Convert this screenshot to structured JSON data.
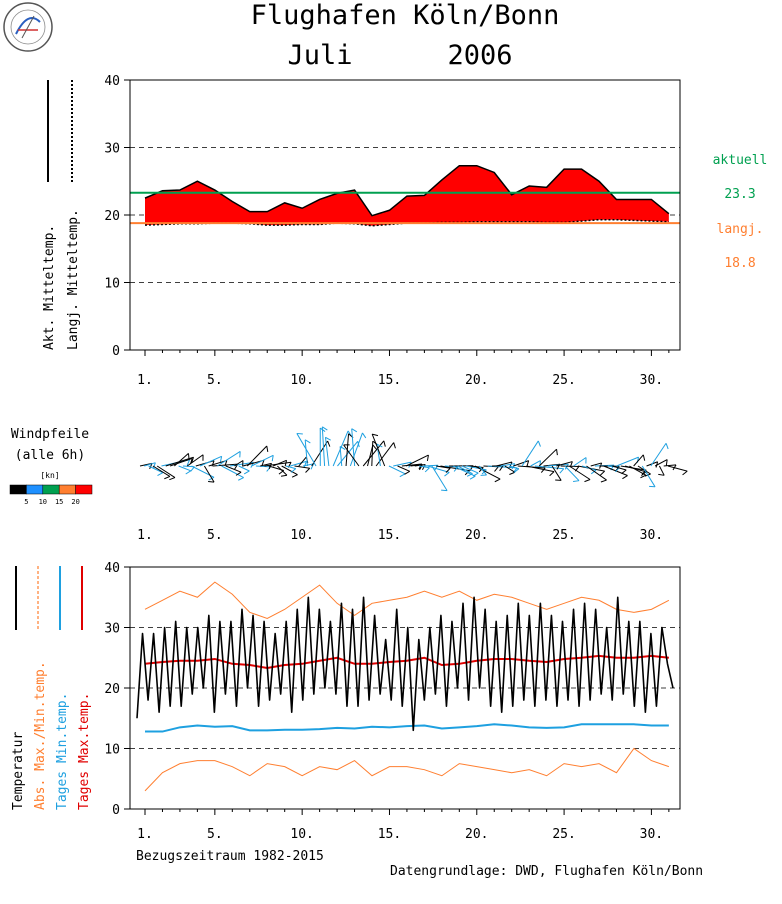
{
  "page": {
    "title_line1": "Flughafen Köln/Bonn",
    "title_month": "Juli",
    "title_year": "2006",
    "logo_text": "Klima Messstation Köln/Bonn",
    "reference_period": "Bezugszeitraum 1982-2015",
    "data_source": "Datengrundlage: DWD, Flughafen Köln/Bonn"
  },
  "panel1": {
    "legend_actual": "Akt. Mitteltemp.",
    "legend_longterm": "Langj. Mitteltemp.",
    "label_current": "aktuell",
    "value_current": "23.3",
    "label_longterm": "langj.",
    "value_longterm": "18.8",
    "colors": {
      "fill_warm": "#ff0000",
      "actual_line": "#00a050",
      "longterm_line": "#ff7f30"
    }
  },
  "panel2": {
    "title_line1": "Windpfeile",
    "title_line2": "(alle 6h)",
    "unit": "[kn]",
    "scale_labels": [
      "5",
      "10",
      "15",
      "20"
    ],
    "scale_colors": [
      "#000000",
      "#1e90ff",
      "#00a050",
      "#ff7f30",
      "#ff0000"
    ]
  },
  "panel3": {
    "legend": [
      "Temperatur",
      "Abs. Max./Min.temp.",
      "Tages Min.temp.",
      "Tages Max.temp."
    ],
    "legend_colors": [
      "#000000",
      "#ff7f30",
      "#1ea0e0",
      "#e00000"
    ]
  },
  "chart_data": [
    {
      "type": "area",
      "title": "Flughafen Köln/Bonn Juli 2006",
      "xlabel": "",
      "ylabel": "",
      "x_ticks": [
        "1.",
        "5.",
        "10.",
        "15.",
        "20.",
        "25.",
        "30."
      ],
      "ylim": [
        0,
        40
      ],
      "y_ticks": [
        0,
        10,
        20,
        30,
        40
      ],
      "grid": "horizontal dashed",
      "days": [
        1,
        2,
        3,
        4,
        5,
        6,
        7,
        8,
        9,
        10,
        11,
        12,
        13,
        14,
        15,
        16,
        17,
        18,
        19,
        20,
        21,
        22,
        23,
        24,
        25,
        26,
        27,
        28,
        29,
        30,
        31
      ],
      "series": [
        {
          "name": "Akt. Mitteltemp.",
          "values": [
            22.5,
            23.6,
            23.7,
            25.0,
            23.7,
            22.0,
            20.5,
            20.5,
            21.8,
            21.0,
            22.3,
            23.2,
            23.7,
            19.9,
            20.7,
            22.8,
            22.9,
            25.2,
            27.3,
            27.3,
            26.3,
            23.0,
            24.3,
            24.1,
            26.8,
            26.8,
            25.0,
            22.3,
            22.3,
            22.3,
            20.2
          ]
        },
        {
          "name": "Langj. Mitteltemp.",
          "values": [
            18.5,
            18.6,
            18.7,
            18.7,
            18.8,
            18.8,
            18.7,
            18.5,
            18.5,
            18.6,
            18.6,
            18.8,
            18.7,
            18.4,
            18.6,
            18.8,
            18.8,
            18.9,
            18.9,
            19.0,
            19.0,
            19.0,
            19.0,
            18.9,
            18.9,
            19.1,
            19.3,
            19.3,
            19.2,
            19.1,
            19.0
          ]
        }
      ],
      "current_mean": 23.3,
      "longterm_mean": 18.8
    },
    {
      "type": "line",
      "title": "",
      "xlabel": "Bezugszeitraum 1982-2015",
      "ylabel": "Temperatur",
      "x_ticks": [
        "1.",
        "5.",
        "10.",
        "15.",
        "20.",
        "25.",
        "30."
      ],
      "ylim": [
        0,
        40
      ],
      "y_ticks": [
        0,
        10,
        20,
        30,
        40
      ],
      "grid": "horizontal dashed",
      "days": [
        1,
        2,
        3,
        4,
        5,
        6,
        7,
        8,
        9,
        10,
        11,
        12,
        13,
        14,
        15,
        16,
        17,
        18,
        19,
        20,
        21,
        22,
        23,
        24,
        25,
        26,
        27,
        28,
        29,
        30,
        31
      ],
      "series": [
        {
          "name": "Abs. Max.temp.",
          "values": [
            33.0,
            34.5,
            36.0,
            35.0,
            37.5,
            35.5,
            32.5,
            31.5,
            33.0,
            35.0,
            37.0,
            34.0,
            32.0,
            34.0,
            34.5,
            35.0,
            36.0,
            35.0,
            36.0,
            34.5,
            35.5,
            35.0,
            34.0,
            33.0,
            34.0,
            35.0,
            34.5,
            33.0,
            32.5,
            33.0,
            34.5
          ]
        },
        {
          "name": "Abs. Min.temp.",
          "values": [
            3.0,
            6.0,
            7.5,
            8.0,
            8.0,
            7.0,
            5.5,
            7.5,
            7.0,
            5.5,
            7.0,
            6.5,
            8.0,
            5.5,
            7.0,
            7.0,
            6.5,
            5.5,
            7.5,
            7.0,
            6.5,
            6.0,
            6.5,
            5.5,
            7.5,
            7.0,
            7.5,
            6.0,
            10.0,
            8.0,
            7.0
          ]
        },
        {
          "name": "Tages Min.temp.",
          "values": [
            12.8,
            12.8,
            13.5,
            13.8,
            13.6,
            13.7,
            13.0,
            13.0,
            13.1,
            13.1,
            13.2,
            13.4,
            13.3,
            13.6,
            13.5,
            13.7,
            13.8,
            13.3,
            13.5,
            13.7,
            14.0,
            13.8,
            13.5,
            13.4,
            13.5,
            14.0,
            14.0,
            14.0,
            14.0,
            13.8,
            13.8
          ]
        },
        {
          "name": "Tages Max.temp.",
          "values": [
            24.0,
            24.3,
            24.5,
            24.5,
            24.8,
            24.0,
            23.8,
            23.3,
            23.8,
            24.0,
            24.5,
            25.0,
            24.0,
            24.0,
            24.3,
            24.5,
            25.0,
            23.8,
            24.0,
            24.5,
            24.8,
            24.8,
            24.5,
            24.3,
            24.8,
            25.0,
            25.3,
            25.0,
            25.0,
            25.3,
            25.0
          ]
        },
        {
          "name": "Temperatur",
          "values": [
            15,
            29,
            18,
            29,
            16,
            30,
            17,
            31,
            17,
            30,
            19,
            30,
            20,
            32,
            16,
            31,
            19,
            31,
            17,
            33,
            20,
            32,
            17,
            31,
            18,
            29,
            19,
            31,
            16,
            33,
            18,
            35,
            19,
            33,
            20,
            31,
            19,
            34,
            17,
            33,
            17,
            35,
            18,
            32,
            19,
            28,
            18,
            33,
            17,
            30,
            13,
            28,
            18,
            30,
            19,
            32,
            17,
            31,
            20,
            34,
            18,
            35,
            20,
            33,
            17,
            31,
            16,
            32,
            17,
            34,
            18,
            32,
            17,
            34,
            18,
            32,
            17,
            31,
            18,
            33,
            17,
            34,
            18,
            33,
            19,
            30,
            18,
            35,
            19,
            31,
            17,
            31,
            16,
            29,
            17,
            30,
            24,
            20
          ]
        }
      ]
    }
  ]
}
